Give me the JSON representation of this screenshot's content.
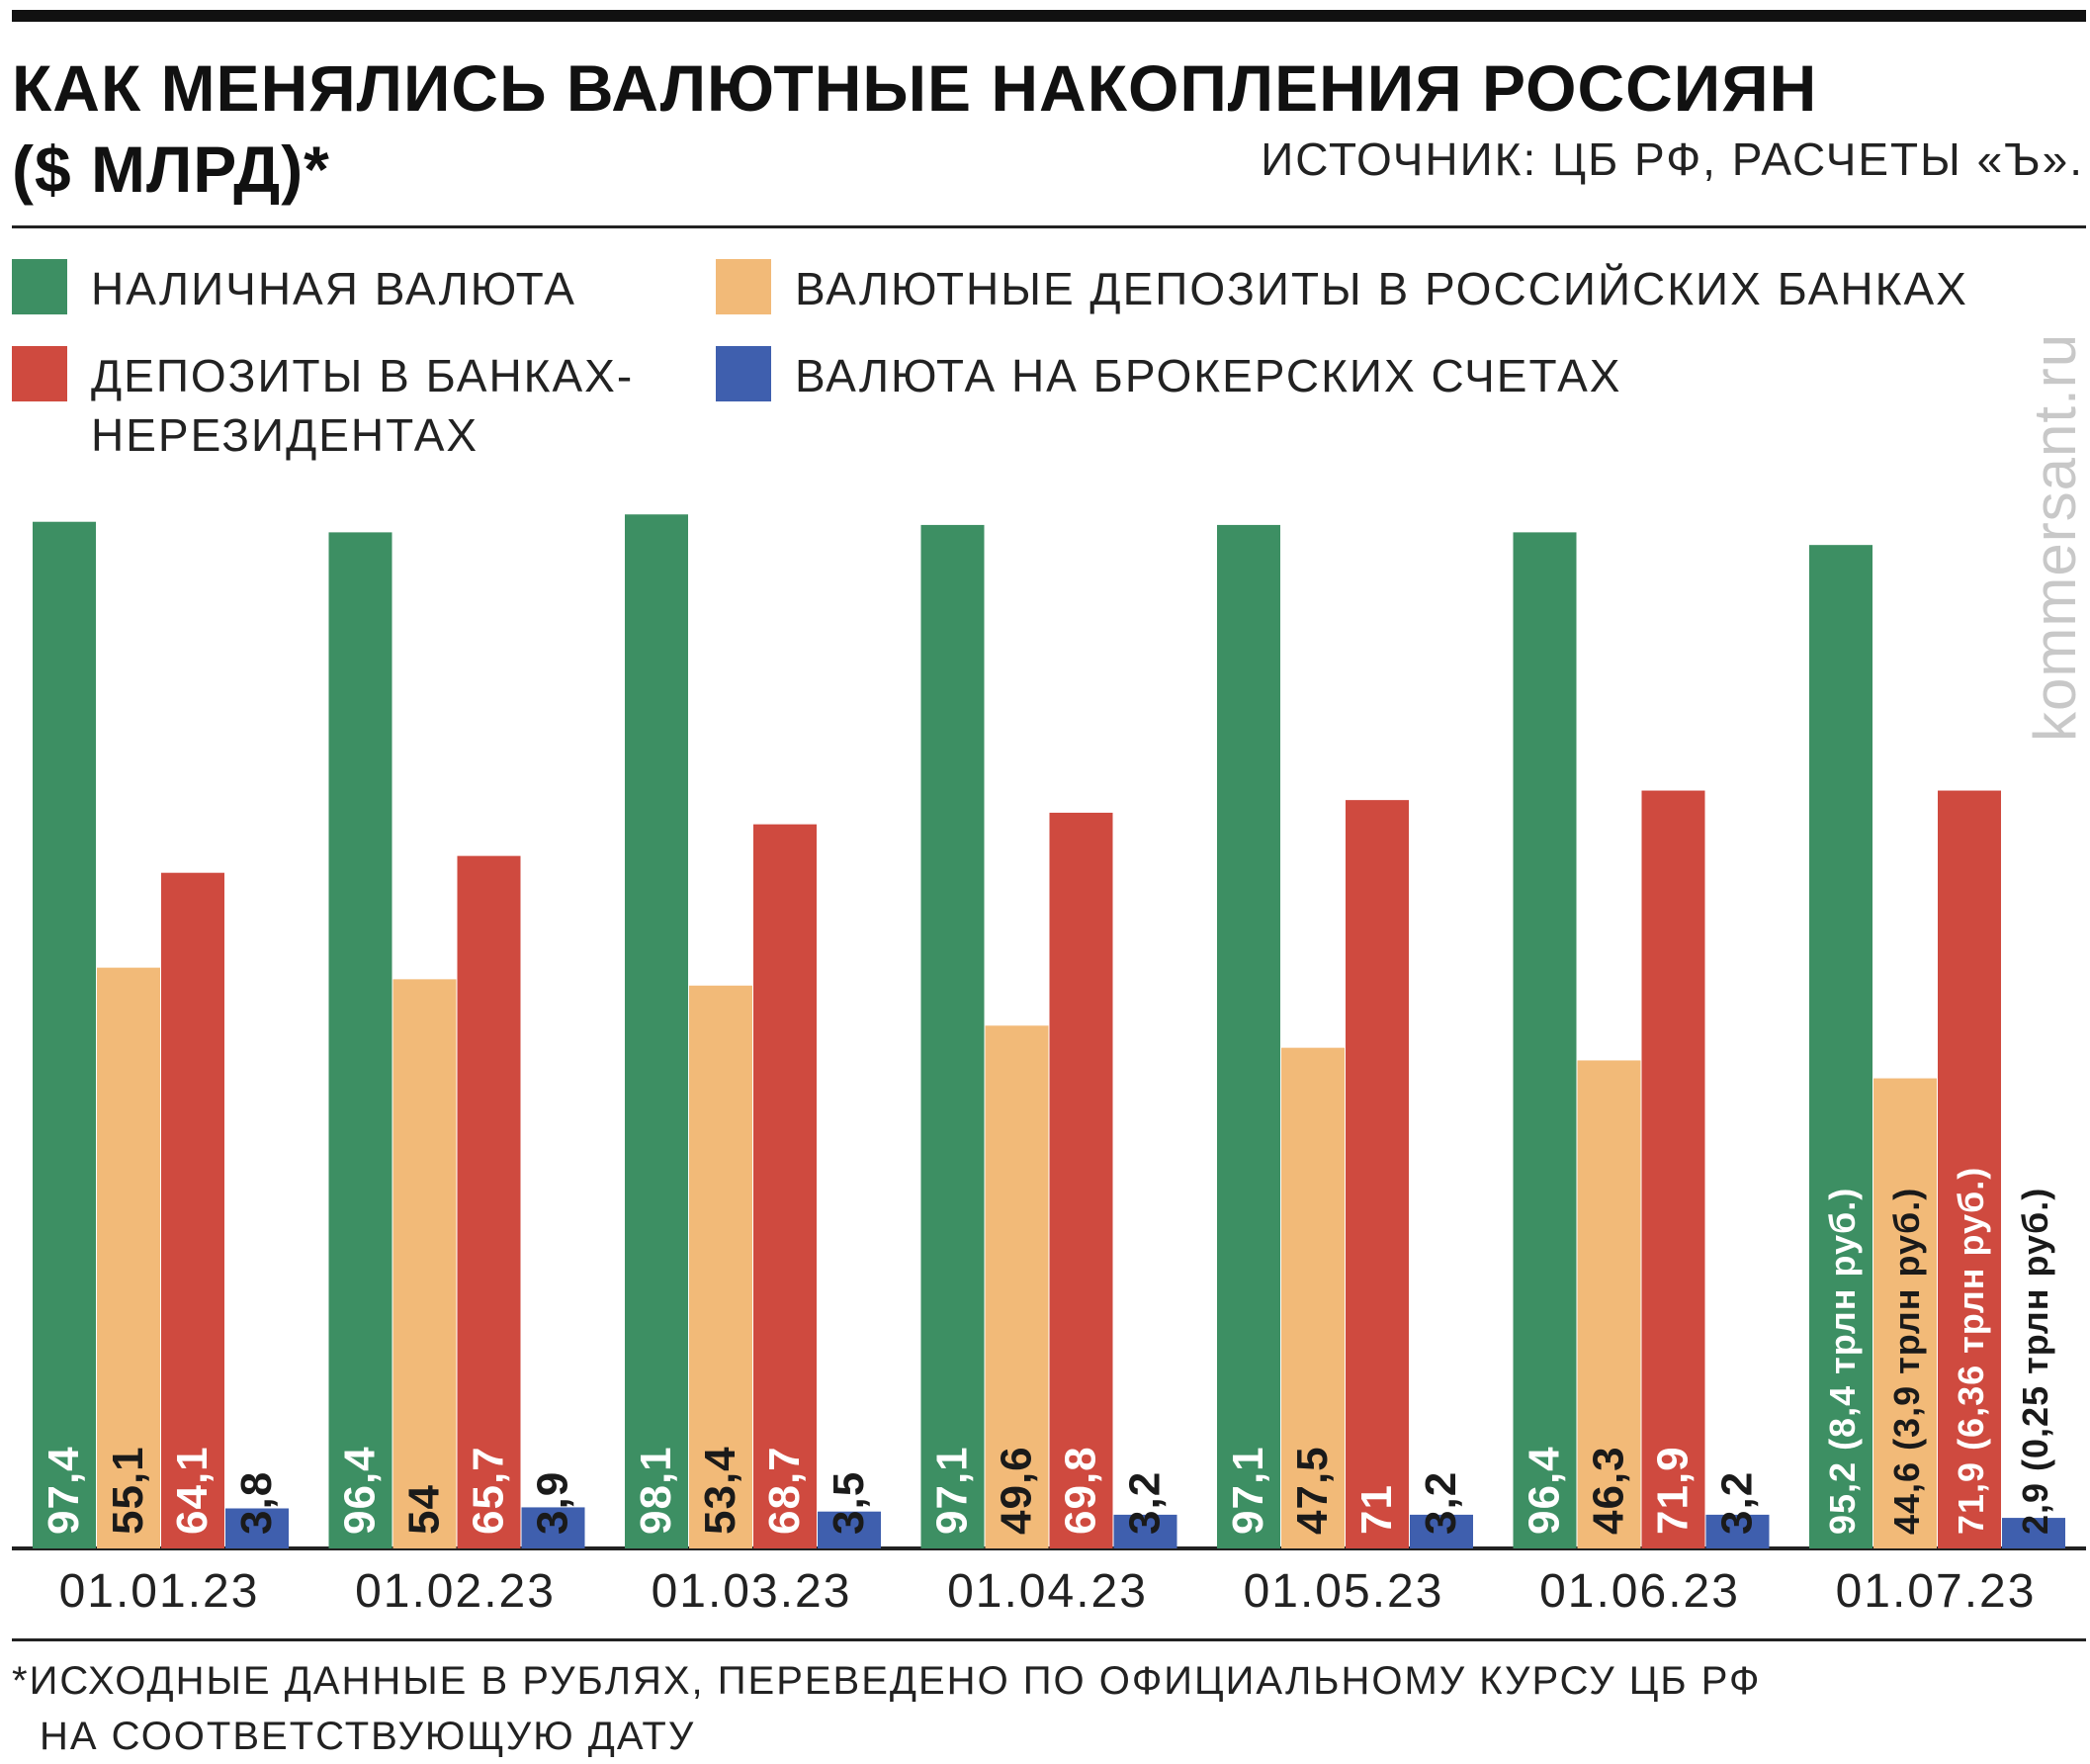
{
  "header": {
    "title": "КАК МЕНЯЛИСЬ ВАЛЮТНЫЕ НАКОПЛЕНИЯ РОССИЯН ($ МЛРД)*",
    "source": "ИСТОЧНИК: ЦБ РФ, РАСЧЕТЫ «Ъ»."
  },
  "legend": [
    {
      "label": "НАЛИЧНАЯ ВАЛЮТА",
      "color": "#3d8f63"
    },
    {
      "label": "ВАЛЮТНЫЕ ДЕПОЗИТЫ В РОССИЙСКИХ БАНКАХ",
      "color": "#f2ba78"
    },
    {
      "label": "ДЕПОЗИТЫ В БАНКАХ-НЕРЕЗИДЕНТАХ",
      "color": "#cf4a3f"
    },
    {
      "label": "ВАЛЮТА НА БРОКЕРСКИХ СЧЕТАХ",
      "color": "#3f5fae"
    }
  ],
  "watermark": "kommersant.ru",
  "chart_data": {
    "type": "bar",
    "categories": [
      "01.01.23",
      "01.02.23",
      "01.03.23",
      "01.04.23",
      "01.05.23",
      "01.06.23",
      "01.07.23"
    ],
    "series": [
      {
        "name": "НАЛИЧНАЯ ВАЛЮТА",
        "color": "#3d8f63",
        "label_color": "#ffffff",
        "values": [
          97.4,
          96.4,
          98.1,
          97.1,
          97.1,
          96.4,
          95.2
        ],
        "labels": [
          "97,4",
          "96,4",
          "98,1",
          "97,1",
          "97,1",
          "96,4",
          "95,2 (8,4 трлн руб.)"
        ]
      },
      {
        "name": "ВАЛЮТНЫЕ ДЕПОЗИТЫ В РОССИЙСКИХ БАНКАХ",
        "color": "#f2ba78",
        "label_color": "#1a1a1a",
        "values": [
          55.1,
          54,
          53.4,
          49.6,
          47.5,
          46.3,
          44.6
        ],
        "labels": [
          "55,1",
          "54",
          "53,4",
          "49,6",
          "47,5",
          "46,3",
          "44,6 (3,9 трлн руб.)"
        ]
      },
      {
        "name": "ДЕПОЗИТЫ В БАНКАХ-НЕРЕЗИДЕНТАХ",
        "color": "#cf4a3f",
        "label_color": "#ffffff",
        "values": [
          64.1,
          65.7,
          68.7,
          69.8,
          71,
          71.9,
          71.9
        ],
        "labels": [
          "64,1",
          "65,7",
          "68,7",
          "69,8",
          "71",
          "71,9",
          "71,9 (6,36 трлн руб.)"
        ]
      },
      {
        "name": "ВАЛЮТА НА БРОКЕРСКИХ СЧЕТАХ",
        "color": "#3f5fae",
        "label_color": "#1a1a1a",
        "values": [
          3.8,
          3.9,
          3.5,
          3.2,
          3.2,
          3.2,
          2.9
        ],
        "labels": [
          "3,8",
          "3,9",
          "3,5",
          "3,2",
          "3,2",
          "3,2",
          "2,9 (0,25 трлн руб.)"
        ]
      }
    ],
    "ylim": [
      0,
      100
    ],
    "grid": false
  },
  "footnote": {
    "line1": "*ИСХОДНЫЕ ДАННЫЕ В РУБЛЯХ, ПЕРЕВЕДЕНО ПО ОФИЦИАЛЬНОМУ КУРСУ ЦБ РФ",
    "line2": "НА СООТВЕТСТВУЮЩУЮ ДАТУ"
  }
}
